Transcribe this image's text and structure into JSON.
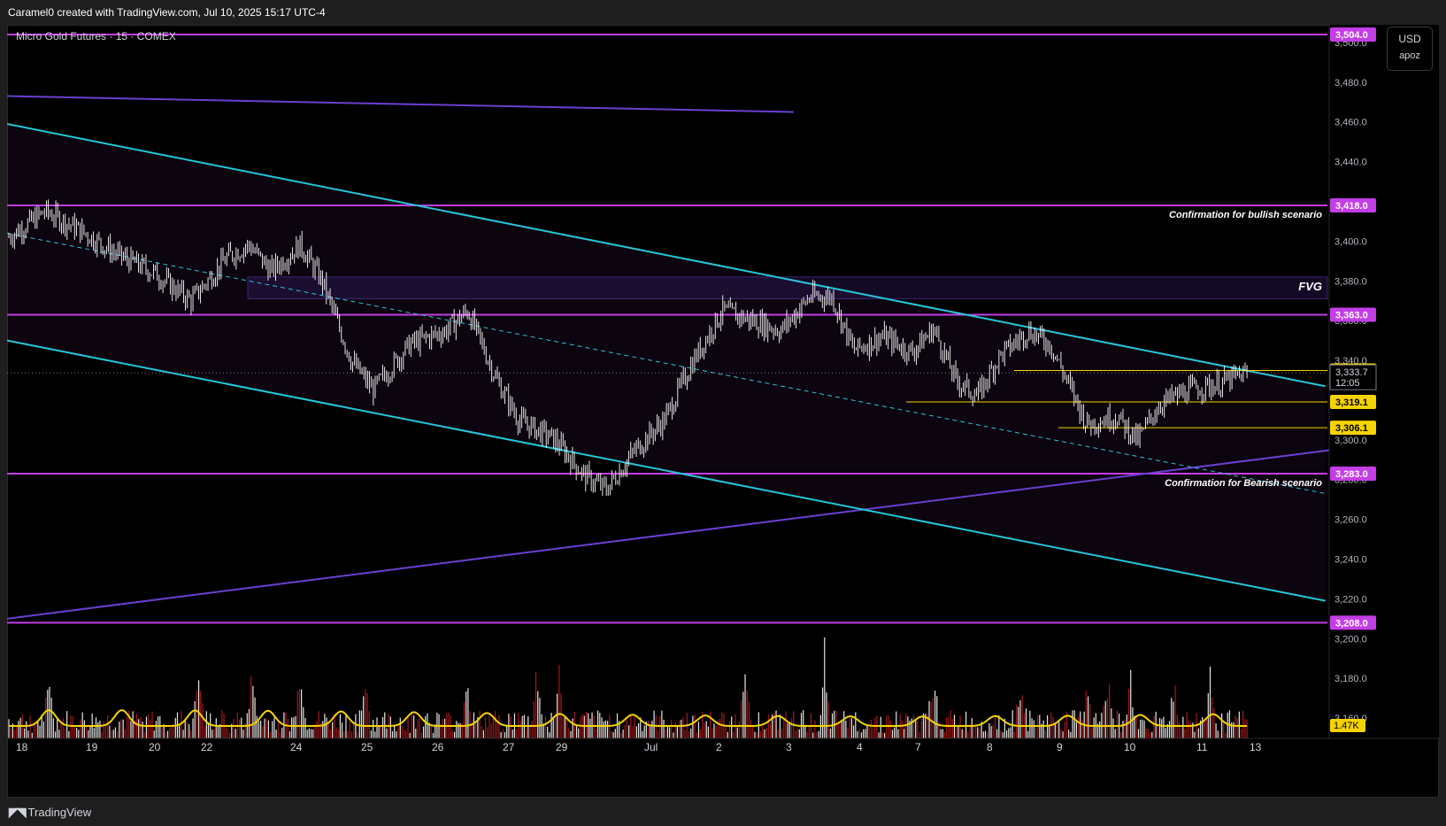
{
  "header": {
    "attribution": "Caramel0 created with TradingView.com, Jul 10, 2025 15:17 UTC-4"
  },
  "legend": {
    "symbol": "Micro Gold Futures · 15 · COMEX"
  },
  "currency": {
    "code": "USD",
    "sub": "apoz"
  },
  "footer": {
    "brand": "TradingView"
  },
  "colors": {
    "background": "#000000",
    "candle": "#ffffff",
    "channel": "#26c6da",
    "level": "#c43de6",
    "trend": "#6a3fd0",
    "volume_up": "#ffffff",
    "volume_down": "#b71c1c",
    "volume_ma": "#f5d300",
    "yellow_level": "#f5d300"
  },
  "chart_data": {
    "type": "candlestick",
    "title": "Micro Gold Futures · 15 · COMEX",
    "ylim": [
      3148,
      3508
    ],
    "y_ticks": [
      3160,
      3180,
      3200,
      3220,
      3240,
      3260,
      3280,
      3300,
      3320,
      3340,
      3360,
      3380,
      3400,
      3420,
      3440,
      3460,
      3480,
      3500
    ],
    "y_tick_labels": [
      "3,160.0",
      "3,180.0",
      "3,200.0",
      "3,220.0",
      "3,240.0",
      "3,260.0",
      "3,280.0",
      "3,300.0",
      "3,320.0",
      "3,340.0",
      "3,360.0",
      "3,380.0",
      "3,400.0",
      "3,420.0",
      "3,440.0",
      "3,460.0",
      "3,480.0",
      "3,500.0"
    ],
    "x_tick_labels": [
      "18",
      "19",
      "20",
      "22",
      "24",
      "25",
      "26",
      "27",
      "29",
      "Jul",
      "2",
      "3",
      "4",
      "7",
      "8",
      "9",
      "10",
      "11",
      "13"
    ],
    "price_path": [
      [
        0,
        3402
      ],
      [
        0.5,
        3415
      ],
      [
        1.0,
        3405
      ],
      [
        1.5,
        3393
      ],
      [
        2.0,
        3384
      ],
      [
        2.5,
        3370
      ],
      [
        3.0,
        3392
      ],
      [
        3.3,
        3398
      ],
      [
        3.6,
        3385
      ],
      [
        4.0,
        3398
      ],
      [
        4.3,
        3380
      ],
      [
        4.7,
        3340
      ],
      [
        5.0,
        3325
      ],
      [
        5.5,
        3348
      ],
      [
        6.0,
        3355
      ],
      [
        6.3,
        3365
      ],
      [
        6.7,
        3330
      ],
      [
        7.0,
        3310
      ],
      [
        7.5,
        3300
      ],
      [
        7.9,
        3282
      ],
      [
        8.2,
        3275
      ],
      [
        8.6,
        3295
      ],
      [
        9.0,
        3310
      ],
      [
        9.4,
        3340
      ],
      [
        9.8,
        3365
      ],
      [
        10.2,
        3360
      ],
      [
        10.6,
        3355
      ],
      [
        11.0,
        3372
      ],
      [
        11.3,
        3372
      ],
      [
        11.6,
        3345
      ],
      [
        12.0,
        3352
      ],
      [
        12.4,
        3344
      ],
      [
        12.7,
        3356
      ],
      [
        13.0,
        3330
      ],
      [
        13.3,
        3322
      ],
      [
        13.6,
        3342
      ],
      [
        14.0,
        3355
      ],
      [
        14.3,
        3348
      ],
      [
        14.5,
        3332
      ],
      [
        14.8,
        3308
      ],
      [
        15.2,
        3312
      ],
      [
        15.5,
        3300
      ],
      [
        15.8,
        3318
      ],
      [
        16.2,
        3325
      ],
      [
        16.6,
        3328
      ],
      [
        17.0,
        3333.7
      ]
    ],
    "series": [
      {
        "name": "Volume",
        "type": "bar",
        "ylim": [
          0,
          6000
        ]
      },
      {
        "name": "Volume MA",
        "type": "line"
      }
    ],
    "price_lines": [
      {
        "value": 3504.0,
        "label": "3,504.0",
        "color": "#c43de6"
      },
      {
        "value": 3418.0,
        "label": "3,418.0",
        "color": "#c43de6"
      },
      {
        "value": 3363.0,
        "label": "3,363.0",
        "color": "#c43de6"
      },
      {
        "value": 3283.0,
        "label": "3,283.0",
        "color": "#c43de6"
      },
      {
        "value": 3208.0,
        "label": "3,208.0",
        "color": "#c43de6"
      }
    ],
    "yellow_levels": [
      {
        "value": 3334.9,
        "label": "3,334.9"
      },
      {
        "value": 3319.1,
        "label": "3,319.1"
      },
      {
        "value": 3306.1,
        "label": "3,306.1"
      }
    ],
    "last_price": {
      "value": 3333.7,
      "label": "3,333.7",
      "countdown": "12:05"
    },
    "volume_label": "1.47K",
    "fvg_zone": {
      "top": 3382,
      "bottom": 3371,
      "label": "FVG"
    },
    "channel": {
      "upper": [
        [
          0,
          3459
        ],
        [
          18.1,
          3327
        ]
      ],
      "lower": [
        [
          0,
          3350
        ],
        [
          18.1,
          3219
        ]
      ],
      "middle": [
        [
          0,
          3404
        ],
        [
          18.1,
          3273
        ]
      ]
    },
    "trendlines": [
      {
        "points": [
          [
            0,
            3473
          ],
          [
            10.8,
            3465
          ]
        ],
        "color": "#6a3fd0"
      },
      {
        "points": [
          [
            0,
            3210
          ],
          [
            19.7,
            3302
          ]
        ],
        "color": "#6a3fd0"
      }
    ],
    "annotations": [
      {
        "text": "Confirmation for bullish scenario",
        "at_price": 3418.0
      },
      {
        "text": "Confirmation for Bearish scenario",
        "at_price": 3283.0
      },
      {
        "text": "FVG",
        "at_price": 3377
      }
    ]
  }
}
